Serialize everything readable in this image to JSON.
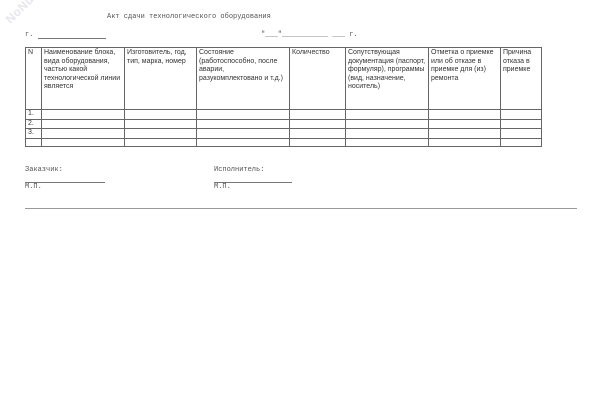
{
  "watermark": "NoNumber.ru",
  "title": "Акт сдачи технологического оборудования",
  "city_label": "г.",
  "date_line": "\"___\"___________ ___ г.",
  "table": {
    "headers": [
      "N",
      "Наименование блока, вида оборудования, частью какой технологической линии является",
      "Изготовитель, год, тип, марка, номер",
      "Состояние (работоспособно, после аварии, разукомплектовано и т.д.)",
      "Количество",
      "Сопутствующая документация (паспорт, формуляр), программы (вид, назначение, носитель)",
      "Отметка о приемке или об отказе в приемке для (из) ремонта",
      "Причина отказа в приемке"
    ],
    "rows": [
      "1.",
      "2.",
      "3.",
      ""
    ]
  },
  "customer_label": "Заказчик:",
  "contractor_label": "Исполнитель:",
  "stamp_label": "М.П."
}
